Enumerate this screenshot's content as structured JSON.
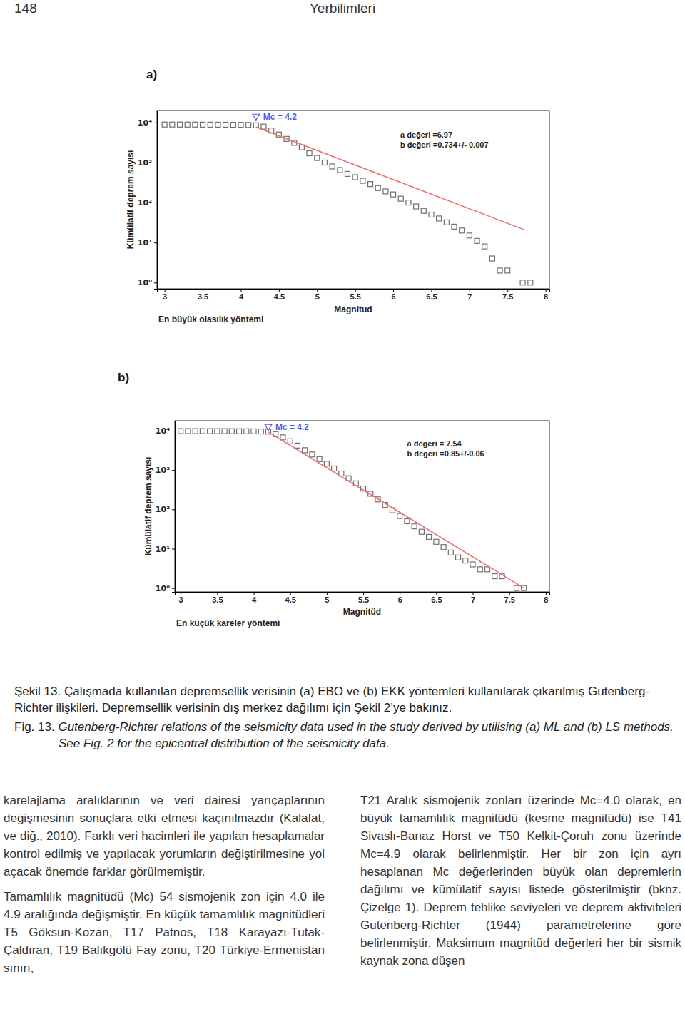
{
  "header": {
    "page_number": "148",
    "journal": "Yerbilimleri"
  },
  "chart_data": [
    {
      "type": "scatter",
      "title": "a)",
      "subtitle": "En büyük olasılık yöntemi",
      "x_label": "Magnitud",
      "y_label": "Kümülatif deprem sayısı",
      "log": "y",
      "xlim": [
        2.9,
        8.05
      ],
      "ylim": [
        0.7,
        20000
      ],
      "xticks": [
        3,
        3.5,
        4,
        4.5,
        5,
        5.5,
        6,
        6.5,
        7,
        7.5,
        8
      ],
      "yticks": [
        {
          "value": 1,
          "label": "10⁰"
        },
        {
          "value": 10,
          "label": "10¹"
        },
        {
          "value": 100,
          "label": "10²"
        },
        {
          "value": 1000,
          "label": "10³"
        },
        {
          "value": 10000,
          "label": "10⁴"
        }
      ],
      "mc": {
        "label": "Mc = 4.2",
        "value": 4.2,
        "color": "#4a5ee8"
      },
      "annotations": [
        "a değeri =6.97",
        "b değeri =0.734+/- 0.007"
      ],
      "series": [
        {
          "type": "scatter",
          "marker": "square",
          "color": "#6f6f6f",
          "x": [
            3,
            3.1,
            3.2,
            3.3,
            3.4,
            3.5,
            3.6,
            3.7,
            3.8,
            3.9,
            4,
            4.1,
            4.2,
            4.3,
            4.4,
            4.5,
            4.6,
            4.7,
            4.8,
            4.9,
            5,
            5.1,
            5.2,
            5.3,
            5.4,
            5.5,
            5.6,
            5.7,
            5.8,
            5.9,
            6,
            6.1,
            6.2,
            6.3,
            6.4,
            6.5,
            6.6,
            6.7,
            6.8,
            6.9,
            7,
            7.1,
            7.2,
            7.3,
            7.4,
            7.5,
            7.7,
            7.8
          ],
          "values": [
            8900,
            8900,
            8890,
            8880,
            8870,
            8860,
            8850,
            8830,
            8810,
            8780,
            8740,
            8680,
            8500,
            7900,
            6300,
            5000,
            3900,
            3100,
            2400,
            1700,
            1300,
            1000,
            800,
            650,
            520,
            430,
            350,
            290,
            230,
            190,
            160,
            125,
            100,
            80,
            62,
            50,
            40,
            32,
            25,
            20,
            15,
            11,
            8,
            4,
            2,
            2,
            1,
            1
          ]
        },
        {
          "type": "line",
          "line_style": "solid",
          "color": "#ef6f6f",
          "x": [
            4.2,
            7.72
          ],
          "values": [
            7700,
            21
          ]
        }
      ]
    },
    {
      "type": "scatter",
      "title": "b)",
      "subtitle": "En küçük kareler yöntemi",
      "x_label": "Magnitüd",
      "y_label": "Kümülatif deprem sayısı",
      "log": "y",
      "xlim": [
        2.92,
        8.05
      ],
      "ylim": [
        0.8,
        18000
      ],
      "xticks": [
        3,
        3.5,
        4,
        4.5,
        5,
        5.5,
        6,
        6.5,
        7,
        7.5,
        8
      ],
      "yticks": [
        {
          "value": 1,
          "label": "10⁰"
        },
        {
          "value": 10,
          "label": "10¹"
        },
        {
          "value": 100,
          "label": "10²"
        },
        {
          "value": 1000,
          "label": "10³"
        },
        {
          "value": 10000,
          "label": "10⁴"
        }
      ],
      "mc": {
        "label": "Mc = 4.2",
        "value": 4.2,
        "color": "#4a5ee8"
      },
      "annotations": [
        "a değeri = 7.54",
        "b değeri =0.85+/-0.06"
      ],
      "series": [
        {
          "type": "scatter",
          "marker": "square",
          "color": "#6f6f6f",
          "x": [
            3,
            3.1,
            3.2,
            3.3,
            3.4,
            3.5,
            3.6,
            3.7,
            3.8,
            3.9,
            4,
            4.1,
            4.2,
            4.3,
            4.4,
            4.5,
            4.6,
            4.7,
            4.8,
            4.9,
            5,
            5.1,
            5.2,
            5.3,
            5.4,
            5.5,
            5.6,
            5.7,
            5.8,
            5.9,
            6,
            6.1,
            6.2,
            6.3,
            6.4,
            6.5,
            6.6,
            6.7,
            6.8,
            6.9,
            7,
            7.1,
            7.2,
            7.3,
            7.4,
            7.6,
            7.7
          ],
          "values": [
            9800,
            9800,
            9790,
            9780,
            9770,
            9760,
            9750,
            9740,
            9720,
            9700,
            9660,
            9600,
            9500,
            8200,
            6800,
            5400,
            4200,
            3200,
            2500,
            1900,
            1450,
            1100,
            820,
            620,
            460,
            340,
            250,
            180,
            130,
            95,
            68,
            50,
            37,
            27,
            20,
            15,
            11,
            8,
            6,
            5,
            4,
            3,
            3,
            2,
            2,
            1,
            1
          ]
        },
        {
          "type": "line",
          "line_style": "solid",
          "color": "#ef6f6f",
          "x": [
            4.2,
            7.7
          ],
          "values": [
            9300,
            1
          ]
        }
      ]
    }
  ],
  "caption": {
    "tr": "Şekil 13. Çalışmada kullanılan depremsellik verisinin (a) EBO ve (b) EKK yöntemleri kullanılarak çıkarılmış Gutenberg-Richter ilişkileri. Depremsellik verisinin dış merkez dağılımı için Şekil 2’ye bakınız.",
    "en_label": "Fig. 13.",
    "en": "Gutenberg-Richter relations of the seismicity data used in the study derived by utilising (a) ML and (b) LS methods. See Fig. 2 for the epicentral distribution of the seismicity data."
  },
  "body": {
    "left": [
      "karelajlama aralıklarının ve veri dairesi yarıçaplarının değişmesinin sonuçlara etki etmesi kaçınılmazdır (Kalafat, ve diğ., 2010). Farklı veri hacimleri ile yapılan hesaplamalar kontrol edilmiş ve yapılacak yorumların değiştirilmesine yol açacak önemde farklar görülmemiştir.",
      "Tamamlılık magnitüdü (Mc) 54 sismojenik zon için 4.0 ile 4.9 aralığında değişmiştir. En küçük tamamlılık magnitüdleri T5 Göksun-Kozan, T17 Patnos, T18 Karayazı-Tutak-Çaldıran, T19 Balıkgölü Fay zonu, T20 Türkiye-Ermenistan sınırı,"
    ],
    "right": [
      "T21 Aralık sismojenik zonları üzerinde Mc=4.0 olarak, en büyük tamamlılık magnitüdü (kesme magnitüdü) ise T41 Sivaslı-Banaz Horst ve T50 Kelkit-Çoruh zonu üzerinde Mc=4.9 olarak belirlenmiştir. Her bir zon için ayrı hesaplanan Mc değerlerinden büyük olan depremlerin dağılımı ve kümülatif sayısı listede gösterilmiştir (bknz. Çizelge 1). Deprem tehlike seviyeleri ve deprem aktiviteleri Gutenberg-Richter (1944) parametrelerine göre belirlenmiştir. Maksimum magnitüd değerleri her bir sismik kaynak zona düşen"
    ]
  }
}
